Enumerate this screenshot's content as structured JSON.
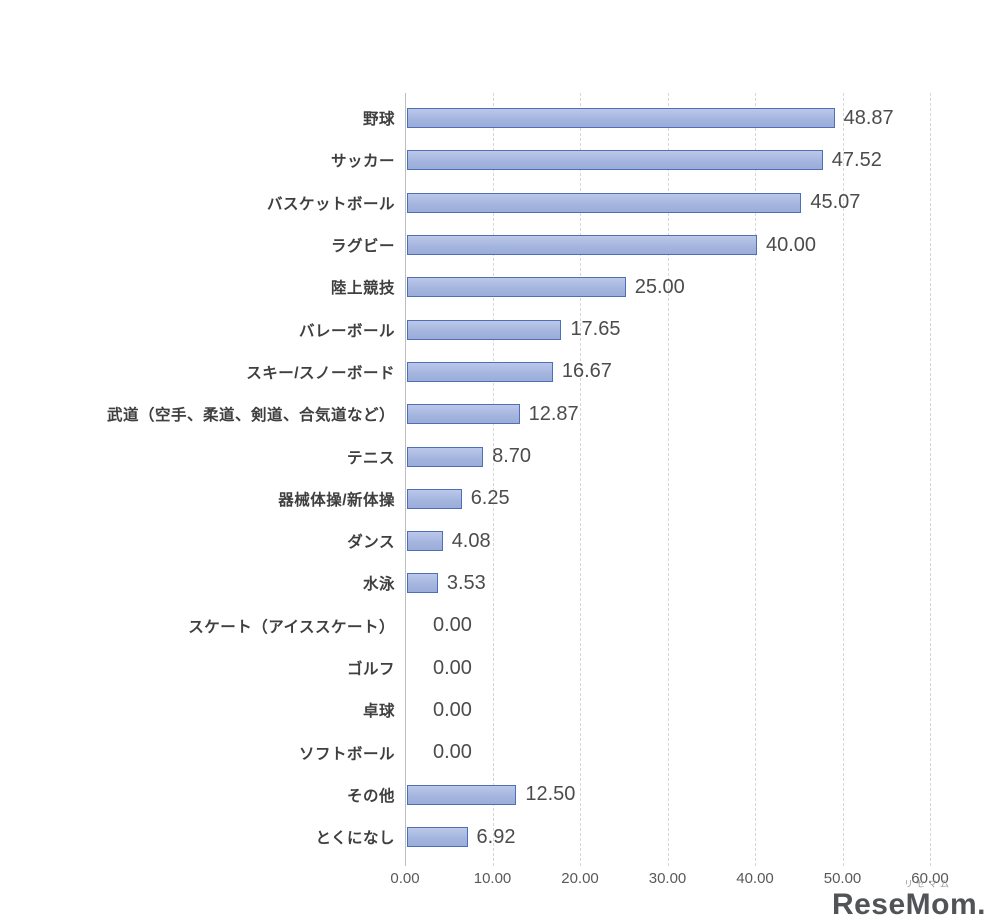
{
  "chart_data": {
    "type": "bar",
    "orientation": "horizontal",
    "title": "",
    "xlabel": "",
    "ylabel": "",
    "xlim": [
      0,
      60
    ],
    "grid": "dashed-vertical",
    "legend": "none",
    "categories": [
      "野球",
      "サッカー",
      "バスケットボール",
      "ラグビー",
      "陸上競技",
      "バレーボール",
      "スキー/スノーボード",
      "武道（空手、柔道、剣道、合気道など）",
      "テニス",
      "器械体操/新体操",
      "ダンス",
      "水泳",
      "スケート（アイススケート）",
      "ゴルフ",
      "卓球",
      "ソフトボール",
      "その他",
      "とくになし"
    ],
    "values": [
      48.87,
      47.52,
      45.07,
      40.0,
      25.0,
      17.65,
      16.67,
      12.87,
      8.7,
      6.25,
      4.08,
      3.53,
      0.0,
      0.0,
      0.0,
      0.0,
      12.5,
      6.92
    ],
    "value_labels": [
      "48.87",
      "47.52",
      "45.07",
      "40.00",
      "25.00",
      "17.65",
      "16.67",
      "12.87",
      "8.70",
      "6.25",
      "4.08",
      "3.53",
      "0.00",
      "0.00",
      "0.00",
      "0.00",
      "12.50",
      "6.92"
    ],
    "x_ticks": [
      "0.00",
      "10.00",
      "20.00",
      "30.00",
      "40.00",
      "50.00",
      "60.00"
    ]
  },
  "colors": {
    "bar_fill": "#a4b5df",
    "bar_border": "#4f6eb8",
    "gridline": "#d6d6d6",
    "axis_line": "#bdbdbd",
    "value_text": "#4c4c4c",
    "label_text": "#3f3f3f",
    "tick_text": "#595959"
  },
  "watermark": {
    "small_text": "リセマム",
    "main_text": "ReseMom."
  }
}
